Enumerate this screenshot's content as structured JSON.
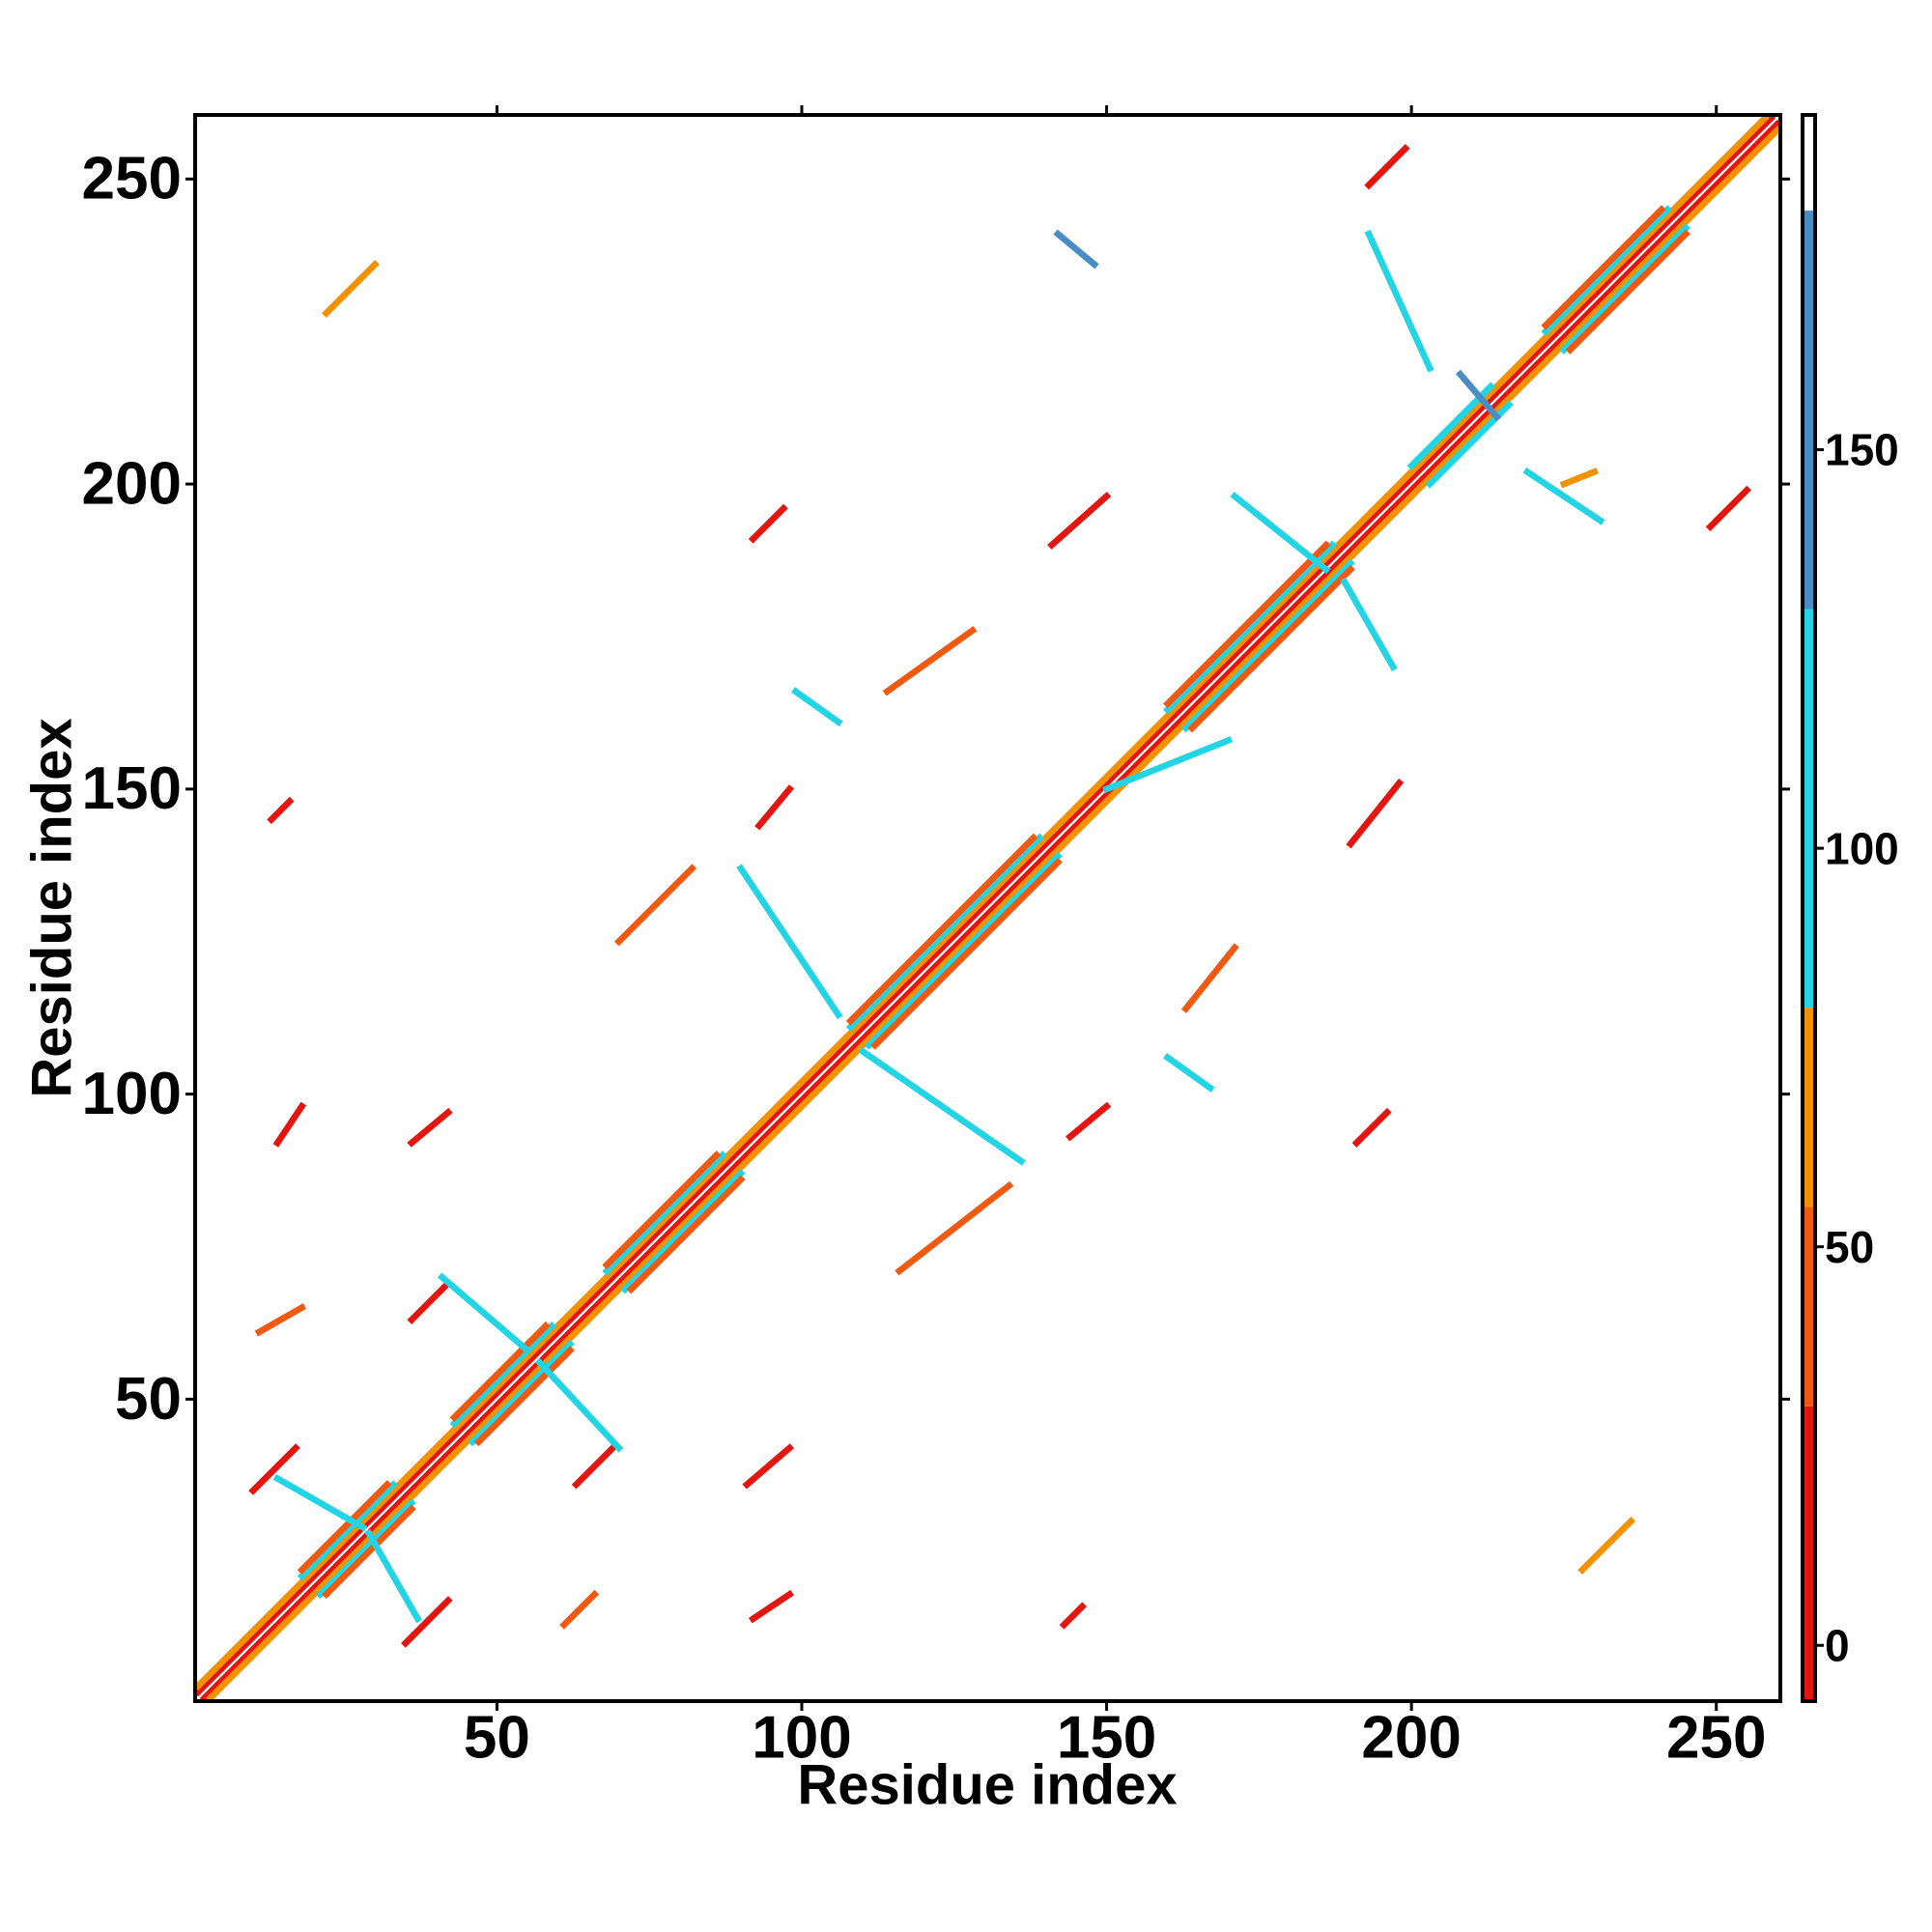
{
  "chart_data": {
    "type": "heatmap",
    "x_label": "Residue index",
    "y_label": "Residue index",
    "xlim": [
      0.5,
      260.5
    ],
    "ylim": [
      0.5,
      260.5
    ],
    "xticks": [
      50,
      100,
      150,
      200,
      250
    ],
    "yticks": [
      50,
      100,
      150,
      200,
      250
    ],
    "clim": [
      -7,
      192
    ],
    "cticks": [
      0,
      50,
      100,
      150
    ],
    "colormap": [
      {
        "range": [
          -7,
          30
        ],
        "color": "#e4150f"
      },
      {
        "range": [
          30,
          55
        ],
        "color": "#f05a10"
      },
      {
        "range": [
          55,
          80
        ],
        "color": "#f39200"
      },
      {
        "range": [
          80,
          130
        ],
        "color": "#22d4e4"
      },
      {
        "range": [
          130,
          180
        ],
        "color": "#4a8cc4"
      },
      {
        "range": [
          180,
          192
        ],
        "color": "#ffffff"
      }
    ],
    "features": [
      {
        "x": [
          2,
          260
        ],
        "y": [
          1,
          259
        ],
        "value": 5
      },
      {
        "x": [
          1,
          259
        ],
        "y": [
          2,
          260
        ],
        "value": 5
      },
      {
        "x": [
          3,
          260
        ],
        "y": [
          1,
          258
        ],
        "value": 60
      },
      {
        "x": [
          1,
          258
        ],
        "y": [
          3,
          260
        ],
        "value": 60
      },
      {
        "x": [
          21,
          36
        ],
        "y": [
          18,
          33
        ],
        "value": 100
      },
      {
        "x": [
          18,
          33
        ],
        "y": [
          21,
          36
        ],
        "value": 100
      },
      {
        "x": [
          22,
          36
        ],
        "y": [
          18,
          32
        ],
        "value": 45
      },
      {
        "x": [
          18,
          32
        ],
        "y": [
          22,
          36
        ],
        "value": 45
      },
      {
        "x": [
          46,
          62
        ],
        "y": [
          43,
          59
        ],
        "value": 100
      },
      {
        "x": [
          43,
          59
        ],
        "y": [
          46,
          62
        ],
        "value": 100
      },
      {
        "x": [
          47,
          62
        ],
        "y": [
          43,
          58
        ],
        "value": 45
      },
      {
        "x": [
          43,
          58
        ],
        "y": [
          47,
          62
        ],
        "value": 45
      },
      {
        "x": [
          71,
          90
        ],
        "y": [
          68,
          87
        ],
        "value": 100
      },
      {
        "x": [
          68,
          87
        ],
        "y": [
          71,
          90
        ],
        "value": 100
      },
      {
        "x": [
          72,
          90
        ],
        "y": [
          68,
          86
        ],
        "value": 45
      },
      {
        "x": [
          68,
          86
        ],
        "y": [
          72,
          90
        ],
        "value": 45
      },
      {
        "x": [
          111,
          142
        ],
        "y": [
          108,
          139
        ],
        "value": 100
      },
      {
        "x": [
          108,
          139
        ],
        "y": [
          111,
          142
        ],
        "value": 100
      },
      {
        "x": [
          112,
          142
        ],
        "y": [
          108,
          138
        ],
        "value": 45
      },
      {
        "x": [
          108,
          138
        ],
        "y": [
          112,
          142
        ],
        "value": 45
      },
      {
        "x": [
          163,
          190
        ],
        "y": [
          160,
          187
        ],
        "value": 100
      },
      {
        "x": [
          160,
          187
        ],
        "y": [
          163,
          190
        ],
        "value": 100
      },
      {
        "x": [
          164,
          190
        ],
        "y": [
          160,
          186
        ],
        "value": 45
      },
      {
        "x": [
          160,
          186
        ],
        "y": [
          164,
          190
        ],
        "value": 45
      },
      {
        "x": [
          203,
          216
        ],
        "y": [
          200,
          213
        ],
        "value": 100
      },
      {
        "x": [
          200,
          213
        ],
        "y": [
          203,
          216
        ],
        "value": 100
      },
      {
        "x": [
          225,
          245
        ],
        "y": [
          222,
          242
        ],
        "value": 100
      },
      {
        "x": [
          222,
          242
        ],
        "y": [
          225,
          245
        ],
        "value": 100
      },
      {
        "x": [
          226,
          245
        ],
        "y": [
          222,
          241
        ],
        "value": 45
      },
      {
        "x": [
          222,
          241
        ],
        "y": [
          226,
          245
        ],
        "value": 45
      },
      {
        "x": [
          10,
          17
        ],
        "y": [
          35,
          42
        ],
        "value": 10
      },
      {
        "x": [
          35,
          42
        ],
        "y": [
          10,
          17
        ],
        "value": 10
      },
      {
        "x": [
          14,
          18
        ],
        "y": [
          92,
          98
        ],
        "value": 5
      },
      {
        "x": [
          92,
          98
        ],
        "y": [
          14,
          18
        ],
        "value": 5
      },
      {
        "x": [
          36,
          42
        ],
        "y": [
          63,
          69
        ],
        "value": 10
      },
      {
        "x": [
          63,
          69
        ],
        "y": [
          36,
          42
        ],
        "value": 10
      },
      {
        "x": [
          93,
          98
        ],
        "y": [
          144,
          150
        ],
        "value": 10
      },
      {
        "x": [
          144,
          150
        ],
        "y": [
          93,
          98
        ],
        "value": 10
      },
      {
        "x": [
          141,
          150
        ],
        "y": [
          190,
          198
        ],
        "value": 10
      },
      {
        "x": [
          190,
          198
        ],
        "y": [
          141,
          151
        ],
        "value": 10
      },
      {
        "x": [
          193,
          199
        ],
        "y": [
          249,
          255
        ],
        "value": 10
      },
      {
        "x": [
          249,
          255
        ],
        "y": [
          193,
          199
        ],
        "value": 10
      },
      {
        "x": [
          143,
          146
        ],
        "y": [
          13,
          16
        ],
        "value": 5
      },
      {
        "x": [
          13,
          16
        ],
        "y": [
          145,
          148
        ],
        "value": 5
      },
      {
        "x": [
          92,
          97
        ],
        "y": [
          191,
          196
        ],
        "value": 20
      },
      {
        "x": [
          191,
          196
        ],
        "y": [
          92,
          97
        ],
        "value": 20
      },
      {
        "x": [
          91,
          98
        ],
        "y": [
          36,
          42
        ],
        "value": 20
      },
      {
        "x": [
          36,
          42
        ],
        "y": [
          92,
          97
        ],
        "value": 20
      },
      {
        "x": [
          22,
          30
        ],
        "y": [
          228,
          236
        ],
        "value": 60
      },
      {
        "x": [
          228,
          236
        ],
        "y": [
          22,
          30
        ],
        "value": 60
      },
      {
        "x": [
          225,
          230
        ],
        "y": [
          200,
          202
        ],
        "value": 60
      },
      {
        "x": [
          11,
          18
        ],
        "y": [
          61,
          65
        ],
        "value": 45
      },
      {
        "x": [
          61,
          66
        ],
        "y": [
          13,
          18
        ],
        "value": 45
      },
      {
        "x": [
          114,
          128
        ],
        "y": [
          166,
          176
        ],
        "value": 45
      },
      {
        "x": [
          163,
          171
        ],
        "y": [
          114,
          124
        ],
        "value": 45
      },
      {
        "x": [
          70,
          82
        ],
        "y": [
          125,
          137
        ],
        "value": 45
      },
      {
        "x": [
          116,
          134
        ],
        "y": [
          71,
          85
        ],
        "value": 45
      },
      {
        "x": [
          57,
          70
        ],
        "y": [
          56,
          42
        ],
        "value": 100
      },
      {
        "x": [
          41,
          55
        ],
        "y": [
          70,
          58
        ],
        "value": 100
      },
      {
        "x": [
          29,
          37
        ],
        "y": [
          28,
          14
        ],
        "value": 100
      },
      {
        "x": [
          14,
          28
        ],
        "y": [
          37,
          29
        ],
        "value": 100
      },
      {
        "x": [
          90,
          106
        ],
        "y": [
          137,
          113
        ],
        "value": 100
      },
      {
        "x": [
          110,
          136
        ],
        "y": [
          107,
          89
        ],
        "value": 100
      },
      {
        "x": [
          171,
          186
        ],
        "y": [
          198,
          186
        ],
        "value": 100
      },
      {
        "x": [
          189,
          197
        ],
        "y": [
          184,
          170
        ],
        "value": 100
      },
      {
        "x": [
          193,
          203
        ],
        "y": [
          241,
          219
        ],
        "value": 100
      },
      {
        "x": [
          219,
          231
        ],
        "y": [
          202,
          194
        ],
        "value": 100
      },
      {
        "x": [
          150,
          170
        ],
        "y": [
          150,
          158
        ],
        "value": 100
      },
      {
        "x": [
          99,
          106
        ],
        "y": [
          166,
          161
        ],
        "value": 100
      },
      {
        "x": [
          160,
          167
        ],
        "y": [
          106,
          101
        ],
        "value": 100
      },
      {
        "x": [
          208,
          214
        ],
        "y": [
          218,
          211
        ],
        "value": 160
      },
      {
        "x": [
          142,
          148
        ],
        "y": [
          241,
          236
        ],
        "value": 160
      }
    ]
  }
}
